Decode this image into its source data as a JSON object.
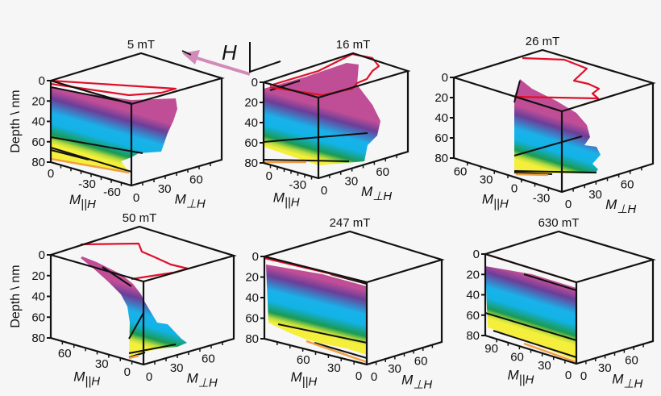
{
  "field_arrow": {
    "label": "H",
    "color": "#d48ab8"
  },
  "depth_axis_label": "Depth \\ nm",
  "axis_labels": {
    "m": "M",
    "par_sub": "||H",
    "perp_sub": "⊥H"
  },
  "colors": {
    "profile": "#e0102a",
    "edges": "#111111",
    "gradient": [
      "#c04e97",
      "#6b3e98",
      "#19b2ea",
      "#12b3e6",
      "#1a9a52",
      "#b9dc3c",
      "#f4ef3b",
      "#f6ee3e"
    ]
  },
  "chart_data": {
    "type": "3d-surface",
    "panels": [
      {
        "title": "5 mT",
        "depth_ticks": [
          "0",
          "20",
          "40",
          "60",
          "80"
        ],
        "par_ticks": [
          "0",
          "-30",
          "-60"
        ],
        "perp_ticks": [
          "0",
          "30",
          "60"
        ],
        "show_depth_label": true
      },
      {
        "title": "16 mT",
        "depth_ticks": [
          "0",
          "20",
          "40",
          "60",
          "80"
        ],
        "par_ticks": [
          "0",
          "-30"
        ],
        "perp_ticks": [
          "0",
          "30",
          "60"
        ],
        "show_depth_label": false
      },
      {
        "title": "26 mT",
        "depth_ticks": [
          "0",
          "20",
          "40",
          "60",
          "80"
        ],
        "par_ticks": [
          "60",
          "30",
          "0",
          "-30"
        ],
        "perp_ticks": [
          "0",
          "30",
          "60"
        ],
        "show_depth_label": false
      },
      {
        "title": "50 mT",
        "depth_ticks": [
          "0",
          "20",
          "40",
          "60",
          "80"
        ],
        "par_ticks": [
          "60",
          "30",
          "0"
        ],
        "perp_ticks": [
          "0",
          "30",
          "60"
        ],
        "show_depth_label": true
      },
      {
        "title": "247 mT",
        "depth_ticks": [
          "0",
          "20",
          "40",
          "60",
          "80"
        ],
        "par_ticks": [
          "60",
          "30",
          "0"
        ],
        "perp_ticks": [
          "0",
          "30",
          "60"
        ],
        "show_depth_label": false
      },
      {
        "title": "630 mT",
        "depth_ticks": [
          "0",
          "20",
          "40",
          "60",
          "80"
        ],
        "par_ticks": [
          "90",
          "60",
          "30",
          "0"
        ],
        "perp_ticks": [
          "0",
          "30",
          "60"
        ],
        "show_depth_label": false
      }
    ]
  }
}
